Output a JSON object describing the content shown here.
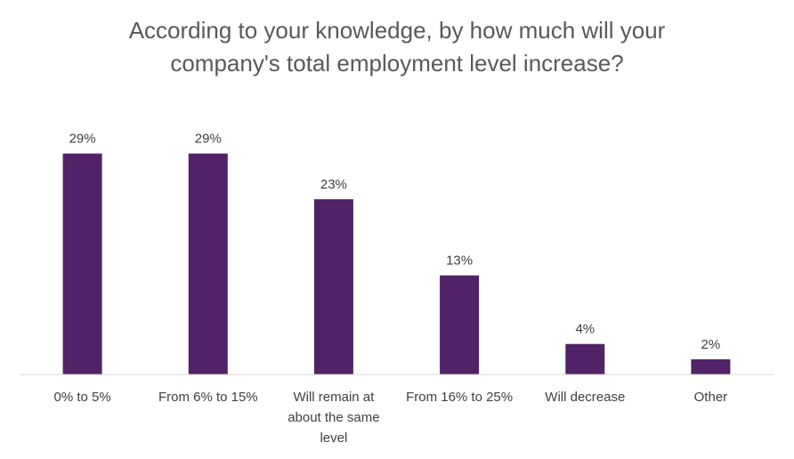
{
  "chart_data": {
    "type": "bar",
    "title_lines": [
      "According to your knowledge, by how much will your",
      "company's total employment level increase?"
    ],
    "categories": [
      [
        "0% to 5%"
      ],
      [
        "From 6% to 15%"
      ],
      [
        "Will remain at",
        "about the same",
        "level"
      ],
      [
        "From 16% to 25%"
      ],
      [
        "Will decrease"
      ],
      [
        "Other"
      ]
    ],
    "values": [
      29,
      29,
      23,
      13,
      4,
      2
    ],
    "value_labels": [
      "29%",
      "29%",
      "23%",
      "13%",
      "4%",
      "2%"
    ],
    "ylim": [
      0,
      30
    ],
    "grid": false,
    "bar_color": "#512267"
  }
}
